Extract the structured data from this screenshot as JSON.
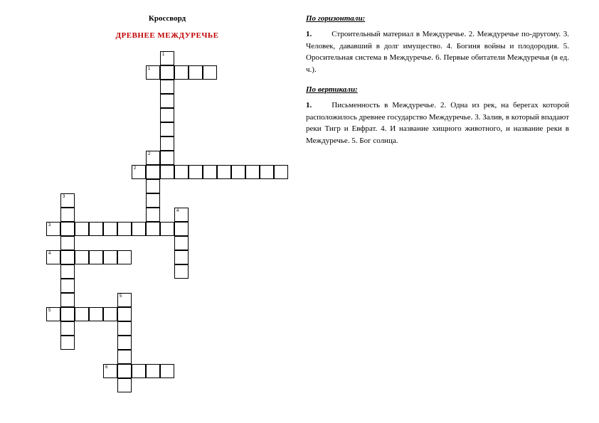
{
  "left": {
    "heading": "Кроссворд",
    "subtitle": "ДРЕВНЕЕ МЕЖДУРЕЧЬЕ"
  },
  "right": {
    "across_head": "По горизонтали:",
    "across_lead": "1.",
    "across_text": "Строительный материал в Междуречье. 2. Междуречье по-другому. 3. Человек, дававший в долг имущество. 4. Богиня войны и плодородия. 5. Оросительная система в Междуречье. 6. Первые обитатели Междуречья (в ед. ч.).",
    "down_head": "По вертикали:",
    "down_lead": "1.",
    "down_text": "Письменность в Междуречье. 2. Одна из рек, на берегах которой расположилось древнее государство Междуречье. 3. Залив, в который впадают реки Тигр и Евфрат. 4. И название хищного животного, и название реки в Междуречье. 5. Бог солнца."
  },
  "grid": {
    "cell_size": 20,
    "cells": [
      {
        "r": 0,
        "c": 8,
        "num": "1"
      },
      {
        "r": 1,
        "c": 7,
        "num": "1"
      },
      {
        "r": 1,
        "c": 8
      },
      {
        "r": 1,
        "c": 9
      },
      {
        "r": 1,
        "c": 10
      },
      {
        "r": 1,
        "c": 11
      },
      {
        "r": 2,
        "c": 8
      },
      {
        "r": 3,
        "c": 8
      },
      {
        "r": 4,
        "c": 8
      },
      {
        "r": 5,
        "c": 8
      },
      {
        "r": 6,
        "c": 8
      },
      {
        "r": 7,
        "c": 7,
        "num": "2"
      },
      {
        "r": 7,
        "c": 8
      },
      {
        "r": 8,
        "c": 6,
        "num": "2"
      },
      {
        "r": 8,
        "c": 7
      },
      {
        "r": 8,
        "c": 8
      },
      {
        "r": 8,
        "c": 9
      },
      {
        "r": 8,
        "c": 10
      },
      {
        "r": 8,
        "c": 11
      },
      {
        "r": 8,
        "c": 12
      },
      {
        "r": 8,
        "c": 13
      },
      {
        "r": 8,
        "c": 14
      },
      {
        "r": 8,
        "c": 15
      },
      {
        "r": 8,
        "c": 16
      },
      {
        "r": 9,
        "c": 7
      },
      {
        "r": 10,
        "c": 1,
        "num": "3"
      },
      {
        "r": 10,
        "c": 7
      },
      {
        "r": 11,
        "c": 1
      },
      {
        "r": 11,
        "c": 7
      },
      {
        "r": 11,
        "c": 9,
        "num": "4"
      },
      {
        "r": 12,
        "c": 0,
        "num": "3"
      },
      {
        "r": 12,
        "c": 1
      },
      {
        "r": 12,
        "c": 2
      },
      {
        "r": 12,
        "c": 3
      },
      {
        "r": 12,
        "c": 4
      },
      {
        "r": 12,
        "c": 5
      },
      {
        "r": 12,
        "c": 6
      },
      {
        "r": 12,
        "c": 7
      },
      {
        "r": 12,
        "c": 8
      },
      {
        "r": 12,
        "c": 9
      },
      {
        "r": 13,
        "c": 1
      },
      {
        "r": 13,
        "c": 9
      },
      {
        "r": 14,
        "c": 0,
        "num": "4"
      },
      {
        "r": 14,
        "c": 1
      },
      {
        "r": 14,
        "c": 2
      },
      {
        "r": 14,
        "c": 3
      },
      {
        "r": 14,
        "c": 4
      },
      {
        "r": 14,
        "c": 5
      },
      {
        "r": 14,
        "c": 9
      },
      {
        "r": 15,
        "c": 1
      },
      {
        "r": 15,
        "c": 9
      },
      {
        "r": 16,
        "c": 1
      },
      {
        "r": 17,
        "c": 1
      },
      {
        "r": 17,
        "c": 5,
        "num": "5"
      },
      {
        "r": 18,
        "c": 0,
        "num": "5"
      },
      {
        "r": 18,
        "c": 1
      },
      {
        "r": 18,
        "c": 2
      },
      {
        "r": 18,
        "c": 3
      },
      {
        "r": 18,
        "c": 4
      },
      {
        "r": 18,
        "c": 5
      },
      {
        "r": 19,
        "c": 1
      },
      {
        "r": 19,
        "c": 5
      },
      {
        "r": 20,
        "c": 1
      },
      {
        "r": 20,
        "c": 5
      },
      {
        "r": 21,
        "c": 5
      },
      {
        "r": 22,
        "c": 4,
        "num": "6"
      },
      {
        "r": 22,
        "c": 5
      },
      {
        "r": 22,
        "c": 6
      },
      {
        "r": 22,
        "c": 7
      },
      {
        "r": 22,
        "c": 8
      },
      {
        "r": 23,
        "c": 5
      }
    ]
  }
}
